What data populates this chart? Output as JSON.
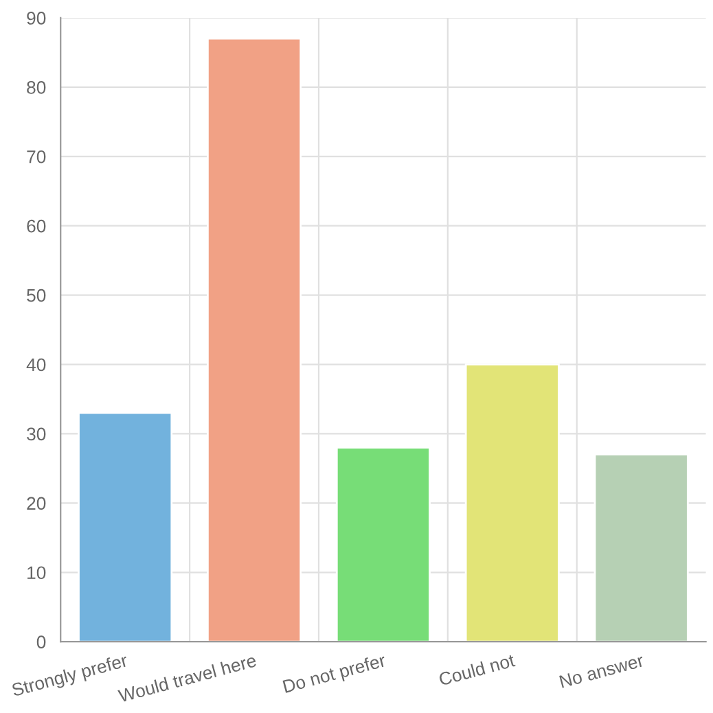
{
  "chart_data": {
    "type": "bar",
    "categories": [
      "Strongly prefer",
      "Would travel here",
      "Do not prefer",
      "Could not",
      "No answer"
    ],
    "values": [
      33,
      87,
      28,
      40,
      27
    ],
    "colors": [
      "#72b2dd",
      "#f1a185",
      "#77dd77",
      "#e2e477",
      "#b6d0b4"
    ],
    "ylim": [
      0,
      90
    ],
    "yticks": [
      0,
      10,
      20,
      30,
      40,
      50,
      60,
      70,
      80,
      90
    ],
    "grid": true,
    "legend": false
  }
}
